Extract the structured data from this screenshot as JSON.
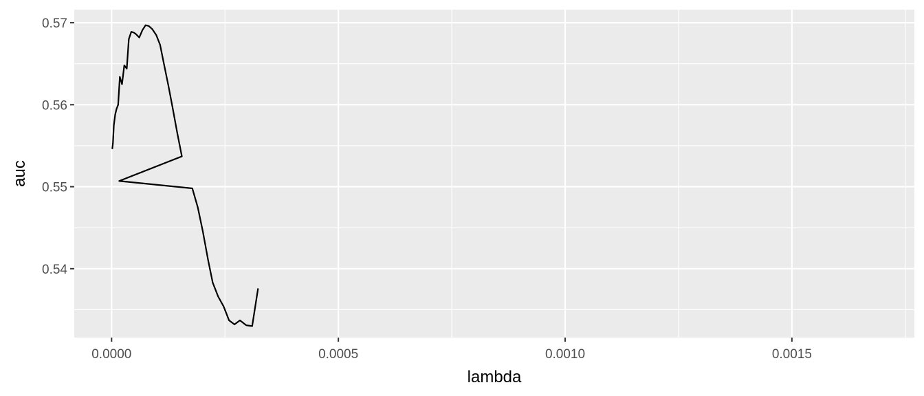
{
  "chart_data": {
    "type": "line",
    "title": "",
    "xlabel": "lambda",
    "ylabel": "auc",
    "xlim": [
      -8.23e-05,
      0.00177
    ],
    "ylim": [
      0.5316,
      0.5716
    ],
    "x_ticks": [
      {
        "value": 0,
        "label": "0.0000"
      },
      {
        "value": 0.0005,
        "label": "0.0005"
      },
      {
        "value": 0.001,
        "label": "0.0010"
      },
      {
        "value": 0.0015,
        "label": "0.0015"
      }
    ],
    "y_ticks": [
      {
        "value": 0.54,
        "label": "0.54"
      },
      {
        "value": 0.55,
        "label": "0.55"
      },
      {
        "value": 0.56,
        "label": "0.56"
      },
      {
        "value": 0.57,
        "label": "0.57"
      }
    ],
    "grid": true,
    "series": [
      {
        "color": "#000000",
        "x": [
          1.5e-06,
          3e-06,
          5e-06,
          8e-06,
          1.1e-05,
          1.45e-05,
          1.82e-05,
          2.3e-05,
          2.8e-05,
          3.35e-05,
          3.8e-05,
          4.35e-05,
          4.9e-05,
          5.4e-05,
          6.1e-05,
          6.8e-05,
          7.5e-05,
          8.2e-05,
          9e-05,
          9.85e-05,
          0.000107,
          0.000115,
          0.000125,
          0.000134,
          0.000145,
          0.000155,
          1.68e-05,
          0.000178,
          0.00019,
          0.000201,
          0.000213,
          0.000223,
          0.000235,
          0.000247,
          0.000259,
          0.000271,
          0.000283,
          0.000297,
          0.00031,
          0.000323
        ],
        "y": [
          0.5546,
          0.5553,
          0.5575,
          0.5588,
          0.5595,
          0.56,
          0.5634,
          0.5625,
          0.5648,
          0.5644,
          0.568,
          0.5689,
          0.5688,
          0.5686,
          0.5682,
          0.5691,
          0.5697,
          0.5696,
          0.5692,
          0.5685,
          0.5673,
          0.5651,
          0.5624,
          0.5598,
          0.5565,
          0.5537,
          0.5507,
          0.5498,
          0.5475,
          0.5446,
          0.541,
          0.5383,
          0.5366,
          0.5354,
          0.5337,
          0.5332,
          0.5337,
          0.5331,
          0.533,
          0.5376
        ]
      }
    ]
  }
}
